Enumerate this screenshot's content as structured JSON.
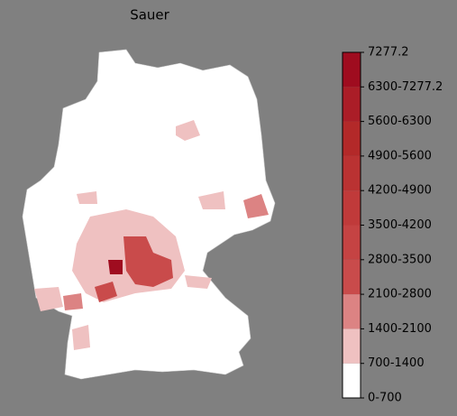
{
  "title": "Sauer",
  "legend": {
    "labels": [
      "0-700",
      "700-1400",
      "1400-2100",
      "2100-2800",
      "2800-3500",
      "3500-4200",
      "4200-4900",
      "4900-5600",
      "5600-6300",
      "6300-7277.2",
      "7277.2"
    ],
    "colors": [
      "#ffffff",
      "#efc1c1",
      "#dc8383",
      "#c94b4b",
      "#c54343",
      "#c03a3a",
      "#ba3232",
      "#b32929",
      "#ab1d27",
      "#9f0c1f"
    ]
  }
}
